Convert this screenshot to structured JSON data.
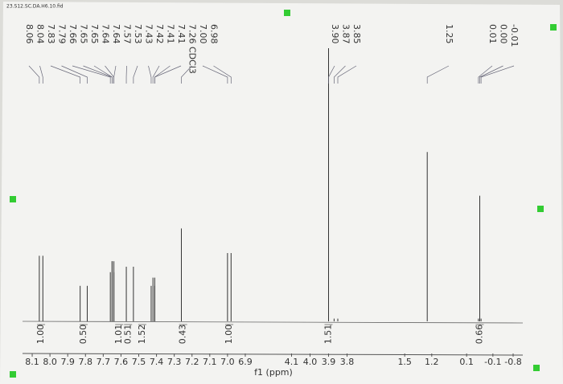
{
  "chart_data": {
    "type": "nmr",
    "title": "23.S12.SC.DA.H6.10.fid",
    "xlabel": "f1 (ppm)",
    "x_segments": [
      {
        "xlim": [
          8.15,
          6.85
        ],
        "xticks": [
          8.1,
          {
            "value": 8,
            "label": "8.0"
          },
          7.9,
          7.8,
          7.7,
          7.6,
          7.5,
          7.4,
          7.3,
          7.2,
          7.1,
          {
            "value": 7,
            "label": "7.0"
          },
          6.9
        ]
      },
      {
        "xlim": [
          4.15,
          3.75
        ],
        "xticks": [
          4.1,
          {
            "value": 4,
            "label": "4.0"
          },
          3.9,
          3.8
        ]
      },
      {
        "xlim": [
          1.6,
          1.1
        ],
        "xticks": [
          1.5,
          1.2
        ]
      },
      {
        "xlim": [
          0.15,
          -0.15
        ],
        "xticks": [
          0.1,
          -0.1
        ]
      },
      {
        "xlim": [
          -0.75,
          -0.85
        ],
        "xticks": [
          -0.8
        ]
      }
    ],
    "ylim": [
      0,
      100
    ],
    "peaks": {
      "x": [
        8.06,
        8.04,
        7.83,
        7.79,
        7.66,
        7.65,
        7.65,
        7.64,
        7.64,
        7.57,
        7.53,
        7.43,
        7.42,
        7.41,
        7.41,
        7.26,
        7.0,
        6.98,
        3.9,
        3.87,
        3.85,
        1.25,
        0.01,
        0.0,
        -0.01
      ],
      "values": [
        24,
        24,
        13,
        13,
        18,
        22,
        22,
        22,
        18,
        20,
        20,
        13,
        16,
        16,
        13,
        34,
        25,
        25,
        100,
        1,
        1,
        62,
        1,
        46,
        1
      ]
    },
    "peak_labels": [
      "8.06",
      "8.04",
      "7.83",
      "7.79",
      "7.66",
      "7.65",
      "7.65",
      "7.64",
      "7.64",
      "7.57",
      "7.53",
      "7.43",
      "7.42",
      "7.41",
      "7.41",
      "7.26 CDCl3",
      "7.00",
      "6.98",
      "3.90",
      "3.87",
      "3.85",
      "1.25",
      "0.01",
      "0.00",
      "-0.01"
    ],
    "integrals": {
      "x": [
        8.05,
        7.81,
        7.61,
        7.56,
        7.48,
        7.25,
        6.99,
        3.9,
        0.0
      ],
      "values": [
        1,
        0.5,
        1.01,
        0.51,
        1.52,
        0.43,
        1,
        1.51,
        0.66
      ],
      "value_labels": [
        "1.00",
        "0.50",
        "1.01",
        "0.51",
        "1.52",
        "0.43",
        "1.00",
        "1.51",
        "0.66"
      ]
    }
  }
}
